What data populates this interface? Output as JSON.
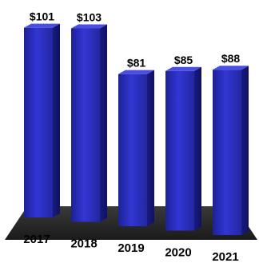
{
  "chart_data": {
    "type": "bar",
    "categories": [
      "2017",
      "2018",
      "2019",
      "2020",
      "2021"
    ],
    "values": [
      101,
      103,
      81,
      85,
      88
    ],
    "data_labels": [
      "$101",
      "$103",
      "$81",
      "$85",
      "$88"
    ],
    "title": "",
    "xlabel": "",
    "ylabel": "",
    "ylim": [
      0,
      105
    ],
    "grid": false,
    "legend": "none",
    "style": "3d-perspective-columns"
  },
  "colors": {
    "bar_front_top": "#2b2fc9",
    "bar_front_bottom": "#1f2296",
    "bar_side": "#15187a",
    "bar_top": "#4a4fe0",
    "floor": "#2a2a2a",
    "floor_edge": "#0d0d0d",
    "text": "#000000"
  }
}
